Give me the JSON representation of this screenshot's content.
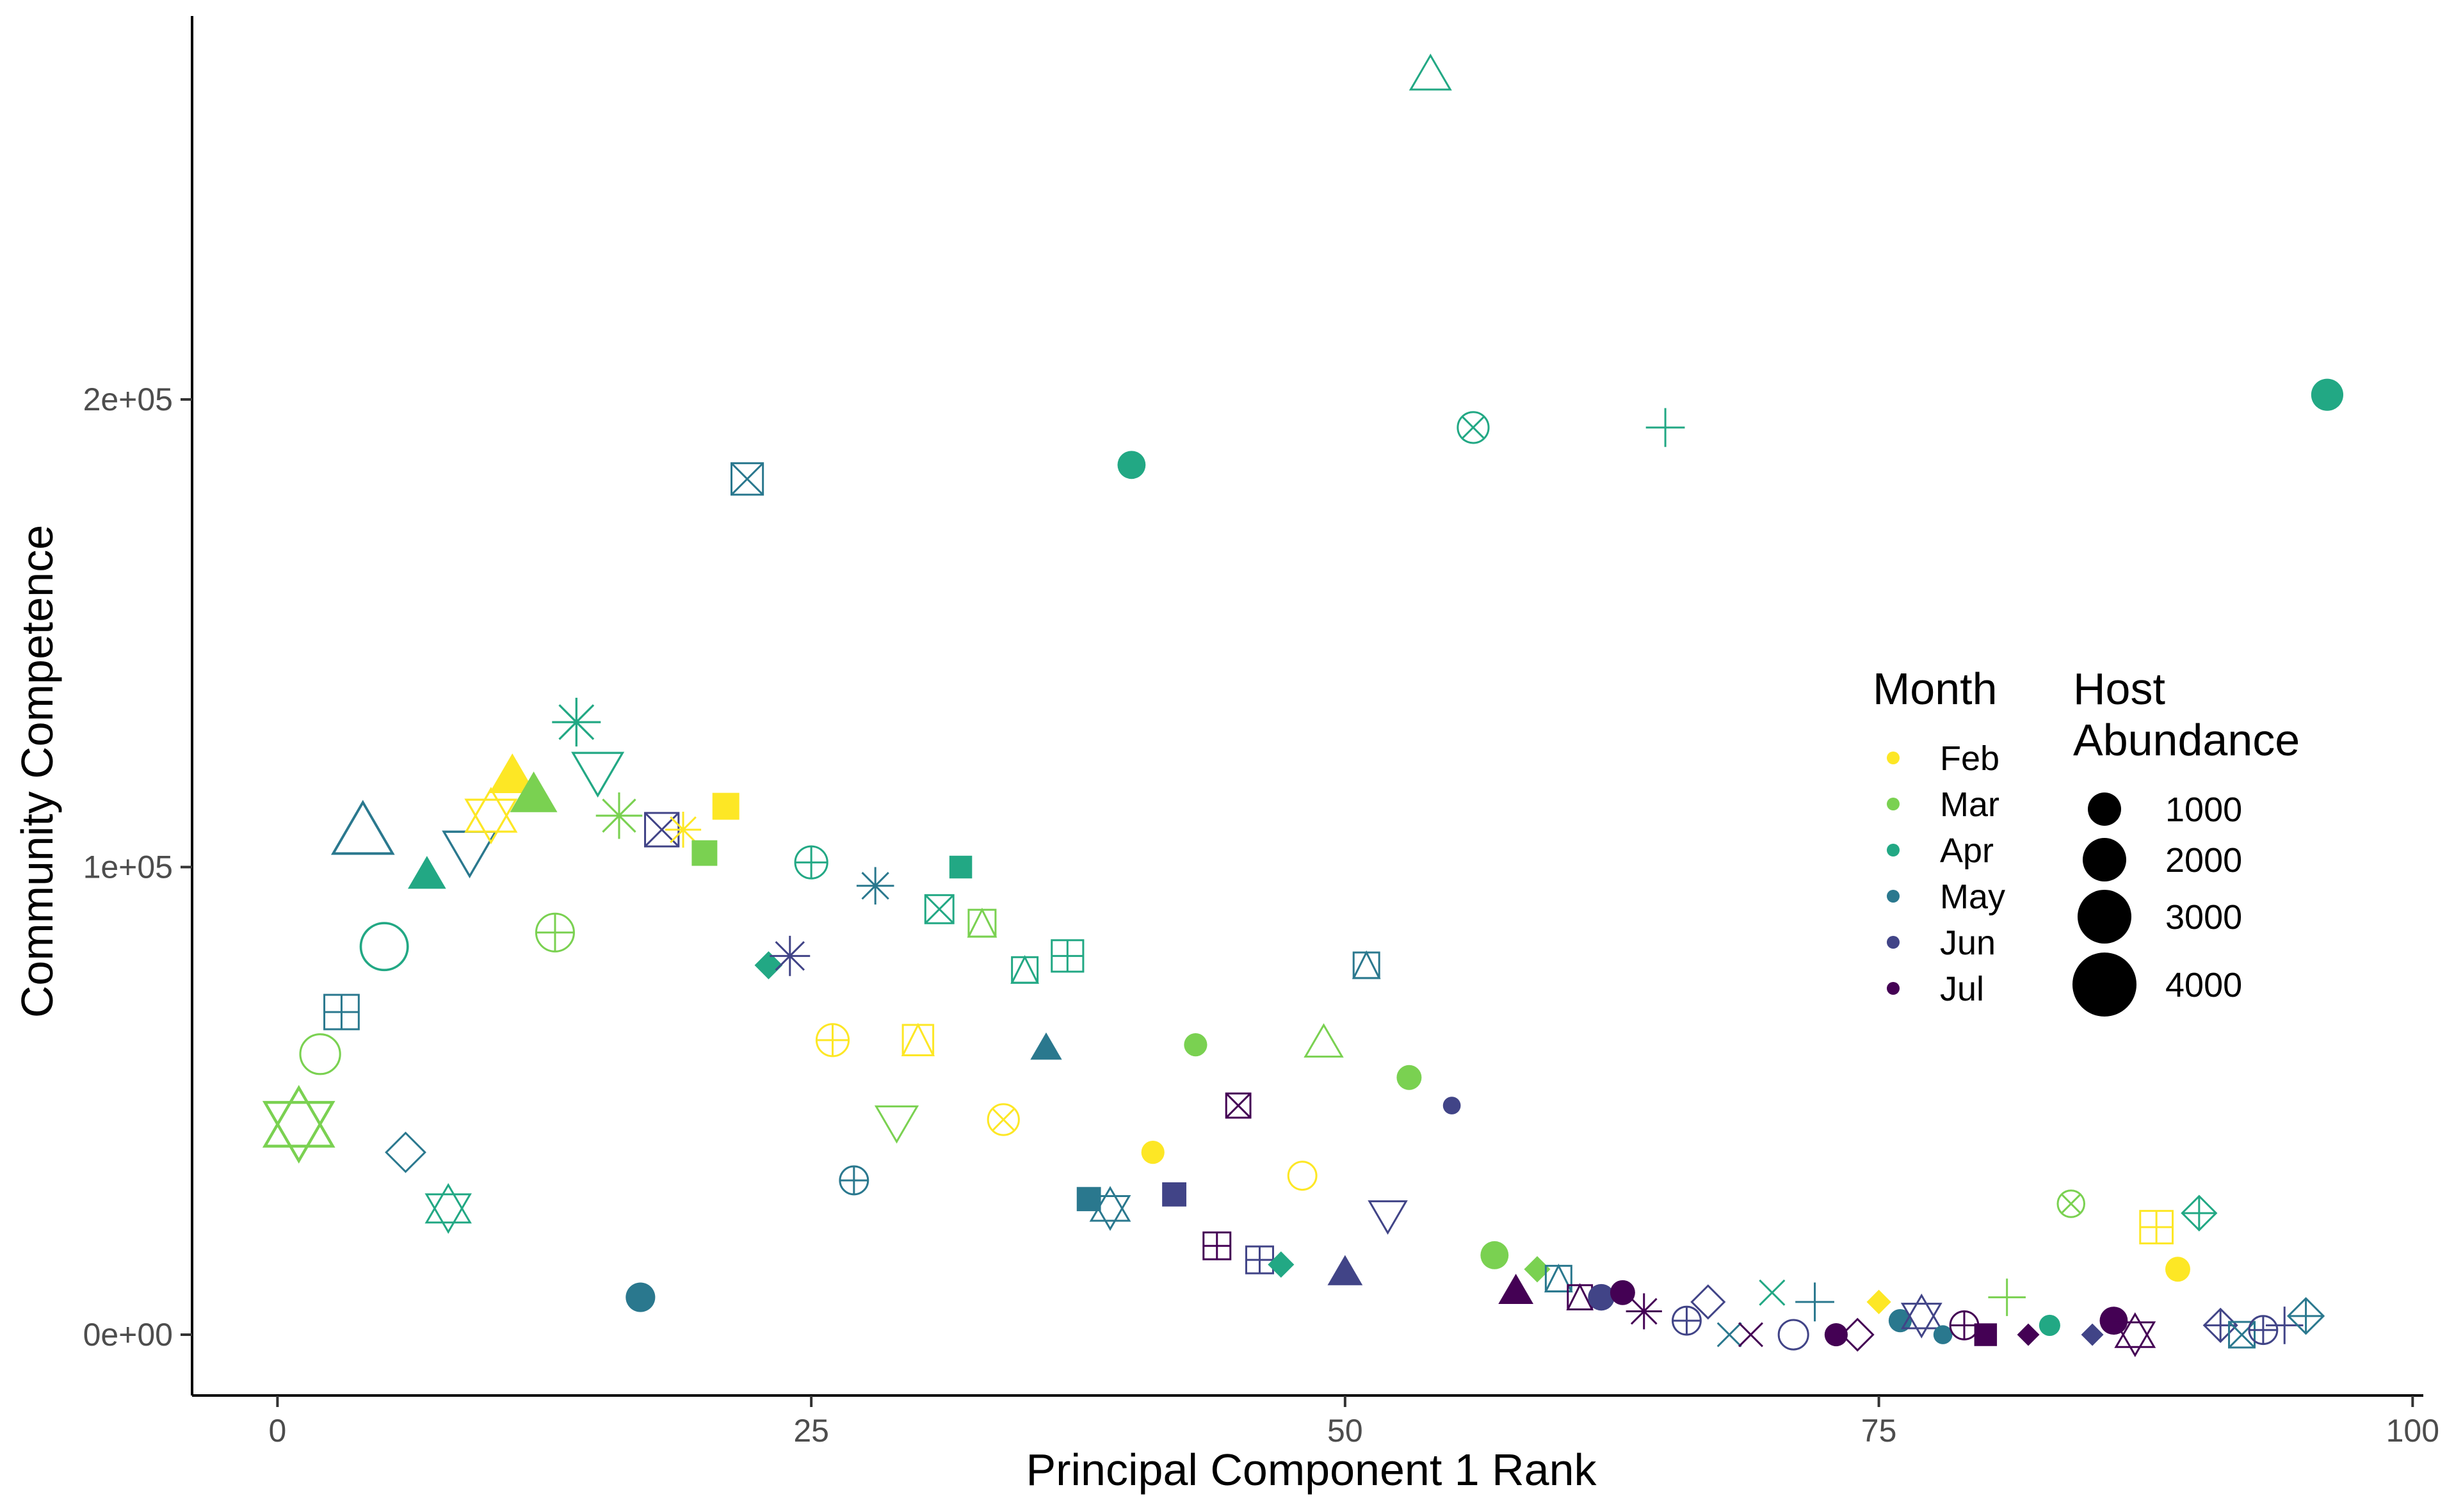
{
  "chart_data": {
    "type": "scatter",
    "title": "",
    "xlabel": "Principal Component 1 Rank",
    "ylabel": "Community Competence",
    "xlim": [
      -4,
      100.5
    ],
    "ylim": [
      -13000,
      282000
    ],
    "x_ticks": [
      {
        "value": 0,
        "label": "0"
      },
      {
        "value": 25,
        "label": "25"
      },
      {
        "value": 50,
        "label": "50"
      },
      {
        "value": 75,
        "label": "75"
      },
      {
        "value": 100,
        "label": "100"
      }
    ],
    "y_ticks": [
      {
        "value": 0,
        "label": "0e+00"
      },
      {
        "value": 100000,
        "label": "1e+05"
      },
      {
        "value": 200000,
        "label": "2e+05"
      }
    ],
    "grid": false,
    "legend": {
      "placement": "right-inside",
      "color_title": "Month",
      "months": [
        {
          "label": "Feb",
          "color": "#FDE725"
        },
        {
          "label": "Mar",
          "color": "#7AD151"
        },
        {
          "label": "Apr",
          "color": "#22A884"
        },
        {
          "label": "May",
          "color": "#2A788E"
        },
        {
          "label": "Jun",
          "color": "#414487"
        },
        {
          "label": "Jul",
          "color": "#440154"
        }
      ],
      "size_title_line1": "Host",
      "size_title_line2": "Abundance",
      "sizes": [
        {
          "label": "1000",
          "value": 1000
        },
        {
          "label": "2000",
          "value": 2000
        },
        {
          "label": "3000",
          "value": 3000
        },
        {
          "label": "4000",
          "value": 4000
        }
      ]
    },
    "points": [
      {
        "x": 1,
        "y": 45000,
        "month": "Mar",
        "shape": "hexagram",
        "size": 4000
      },
      {
        "x": 2,
        "y": 60000,
        "month": "Mar",
        "shape": "circle-open",
        "size": 1800
      },
      {
        "x": 3,
        "y": 69000,
        "month": "May",
        "shape": "square-plus",
        "size": 1600
      },
      {
        "x": 4,
        "y": 107000,
        "month": "May",
        "shape": "triangle-open",
        "size": 3000
      },
      {
        "x": 5,
        "y": 83000,
        "month": "Apr",
        "shape": "circle-open",
        "size": 2600
      },
      {
        "x": 6,
        "y": 39000,
        "month": "May",
        "shape": "diamond-open",
        "size": 1500
      },
      {
        "x": 7,
        "y": 98000,
        "month": "Apr",
        "shape": "triangle",
        "size": 1100
      },
      {
        "x": 8,
        "y": 27000,
        "month": "Apr",
        "shape": "hexagram",
        "size": 1500
      },
      {
        "x": 9,
        "y": 104000,
        "month": "May",
        "shape": "triangle-down-open",
        "size": 2200
      },
      {
        "x": 10,
        "y": 111000,
        "month": "Feb",
        "shape": "hexagram",
        "size": 2000
      },
      {
        "x": 11,
        "y": 119000,
        "month": "Feb",
        "shape": "triangle",
        "size": 1700
      },
      {
        "x": 12,
        "y": 115000,
        "month": "Mar",
        "shape": "triangle",
        "size": 1800
      },
      {
        "x": 13,
        "y": 86000,
        "month": "Mar",
        "shape": "circle-plus",
        "size": 1600
      },
      {
        "x": 14,
        "y": 131000,
        "month": "Apr",
        "shape": "asterisk",
        "size": 2000
      },
      {
        "x": 15,
        "y": 121000,
        "month": "Apr",
        "shape": "triangle-down-open",
        "size": 2000
      },
      {
        "x": 16,
        "y": 111000,
        "month": "Mar",
        "shape": "asterisk",
        "size": 1800
      },
      {
        "x": 17,
        "y": 8000,
        "month": "May",
        "shape": "circle",
        "size": 900
      },
      {
        "x": 18,
        "y": 108000,
        "month": "Jun",
        "shape": "square-cross",
        "size": 1500
      },
      {
        "x": 19,
        "y": 108000,
        "month": "Feb",
        "shape": "asterisk",
        "size": 1000
      },
      {
        "x": 20,
        "y": 103000,
        "month": "Mar",
        "shape": "square",
        "size": 800
      },
      {
        "x": 21,
        "y": 113000,
        "month": "Feb",
        "shape": "square",
        "size": 900
      },
      {
        "x": 22,
        "y": 183000,
        "month": "May",
        "shape": "square-cross",
        "size": 1300
      },
      {
        "x": 23,
        "y": 79000,
        "month": "Apr",
        "shape": "diamond",
        "size": 700
      },
      {
        "x": 24,
        "y": 81000,
        "month": "Jun",
        "shape": "asterisk",
        "size": 1300
      },
      {
        "x": 25,
        "y": 101000,
        "month": "Apr",
        "shape": "circle-plus",
        "size": 1100
      },
      {
        "x": 26,
        "y": 63000,
        "month": "Feb",
        "shape": "circle-plus",
        "size": 1100
      },
      {
        "x": 27,
        "y": 33000,
        "month": "May",
        "shape": "circle-plus",
        "size": 800
      },
      {
        "x": 28,
        "y": 96000,
        "month": "May",
        "shape": "asterisk",
        "size": 1100
      },
      {
        "x": 29,
        "y": 46000,
        "month": "Mar",
        "shape": "triangle-down-open",
        "size": 1300
      },
      {
        "x": 30,
        "y": 63000,
        "month": "Feb",
        "shape": "square-triangle",
        "size": 1200
      },
      {
        "x": 31,
        "y": 91000,
        "month": "Apr",
        "shape": "square-cross",
        "size": 1000
      },
      {
        "x": 32,
        "y": 100000,
        "month": "Apr",
        "shape": "square",
        "size": 600
      },
      {
        "x": 33,
        "y": 88000,
        "month": "Mar",
        "shape": "square-triangle",
        "size": 900
      },
      {
        "x": 34,
        "y": 46000,
        "month": "Feb",
        "shape": "circle-cross",
        "size": 1000
      },
      {
        "x": 35,
        "y": 78000,
        "month": "Apr",
        "shape": "square-triangle",
        "size": 800
      },
      {
        "x": 36,
        "y": 61000,
        "month": "May",
        "shape": "triangle",
        "size": 700
      },
      {
        "x": 37,
        "y": 81000,
        "month": "Apr",
        "shape": "square-plus",
        "size": 1300
      },
      {
        "x": 38,
        "y": 29000,
        "month": "May",
        "shape": "square",
        "size": 700
      },
      {
        "x": 39,
        "y": 27000,
        "month": "May",
        "shape": "hexagram",
        "size": 1100
      },
      {
        "x": 40,
        "y": 186000,
        "month": "Apr",
        "shape": "circle",
        "size": 800
      },
      {
        "x": 41,
        "y": 39000,
        "month": "Feb",
        "shape": "circle",
        "size": 500
      },
      {
        "x": 42,
        "y": 30000,
        "month": "Jun",
        "shape": "square",
        "size": 700
      },
      {
        "x": 43,
        "y": 62000,
        "month": "Mar",
        "shape": "circle",
        "size": 500
      },
      {
        "x": 44,
        "y": 19000,
        "month": "Jul",
        "shape": "square-plus",
        "size": 900
      },
      {
        "x": 45,
        "y": 49000,
        "month": "Jul",
        "shape": "square-cross",
        "size": 700
      },
      {
        "x": 46,
        "y": 16000,
        "month": "Jun",
        "shape": "square-plus",
        "size": 900
      },
      {
        "x": 47,
        "y": 15000,
        "month": "Apr",
        "shape": "diamond",
        "size": 600
      },
      {
        "x": 48,
        "y": 34000,
        "month": "Feb",
        "shape": "circle-open",
        "size": 800
      },
      {
        "x": 49,
        "y": 62000,
        "month": "Mar",
        "shape": "triangle-open",
        "size": 1000
      },
      {
        "x": 50,
        "y": 13000,
        "month": "Jun",
        "shape": "triangle",
        "size": 900
      },
      {
        "x": 51,
        "y": 79000,
        "month": "May",
        "shape": "square-triangle",
        "size": 800
      },
      {
        "x": 52,
        "y": 26000,
        "month": "Jun",
        "shape": "triangle-down-open",
        "size": 1000
      },
      {
        "x": 53,
        "y": 55000,
        "month": "Mar",
        "shape": "circle",
        "size": 600
      },
      {
        "x": 54,
        "y": 269000,
        "month": "Apr",
        "shape": "triangle-open",
        "size": 1200
      },
      {
        "x": 55,
        "y": 49000,
        "month": "Jun",
        "shape": "circle",
        "size": 250
      },
      {
        "x": 56,
        "y": 194000,
        "month": "Apr",
        "shape": "circle-cross",
        "size": 1000
      },
      {
        "x": 57,
        "y": 17000,
        "month": "Mar",
        "shape": "circle",
        "size": 800
      },
      {
        "x": 58,
        "y": 9000,
        "month": "Jul",
        "shape": "triangle",
        "size": 900
      },
      {
        "x": 59,
        "y": 14000,
        "month": "Mar",
        "shape": "diamond",
        "size": 600
      },
      {
        "x": 60,
        "y": 12000,
        "month": "May",
        "shape": "square-triangle",
        "size": 800
      },
      {
        "x": 61,
        "y": 8000,
        "month": "Jul",
        "shape": "square-triangle",
        "size": 700
      },
      {
        "x": 62,
        "y": 8000,
        "month": "Jun",
        "shape": "circle",
        "size": 700
      },
      {
        "x": 63,
        "y": 9000,
        "month": "Jul",
        "shape": "circle",
        "size": 600
      },
      {
        "x": 64,
        "y": 5000,
        "month": "Jul",
        "shape": "asterisk",
        "size": 1000
      },
      {
        "x": 66,
        "y": 3000,
        "month": "Jun",
        "shape": "circle-plus",
        "size": 800
      },
      {
        "x": 67,
        "y": 7000,
        "month": "Jun",
        "shape": "diamond-open",
        "size": 1000
      },
      {
        "x": 65,
        "y": 194000,
        "month": "Apr",
        "shape": "plus",
        "size": 1200
      },
      {
        "x": 68,
        "y": 0,
        "month": "May",
        "shape": "cross",
        "size": 700
      },
      {
        "x": 69,
        "y": 0,
        "month": "Jul",
        "shape": "cross",
        "size": 700
      },
      {
        "x": 70,
        "y": 9000,
        "month": "Apr",
        "shape": "cross",
        "size": 800
      },
      {
        "x": 71,
        "y": 0,
        "month": "Jun",
        "shape": "circle-open",
        "size": 900
      },
      {
        "x": 72,
        "y": 7000,
        "month": "May",
        "shape": "plus",
        "size": 1200
      },
      {
        "x": 73,
        "y": 0,
        "month": "Jul",
        "shape": "circle",
        "size": 500
      },
      {
        "x": 74,
        "y": 0,
        "month": "Jul",
        "shape": "diamond-open",
        "size": 900
      },
      {
        "x": 75,
        "y": 7000,
        "month": "Feb",
        "shape": "diamond",
        "size": 500
      },
      {
        "x": 76,
        "y": 3000,
        "month": "May",
        "shape": "circle",
        "size": 500
      },
      {
        "x": 77,
        "y": 4000,
        "month": "Jun",
        "shape": "hexagram",
        "size": 1100
      },
      {
        "x": 78,
        "y": 0,
        "month": "May",
        "shape": "circle",
        "size": 300
      },
      {
        "x": 79,
        "y": 2000,
        "month": "Jul",
        "shape": "circle-plus",
        "size": 800
      },
      {
        "x": 80,
        "y": 0,
        "month": "Jul",
        "shape": "square",
        "size": 600
      },
      {
        "x": 81,
        "y": 8000,
        "month": "Mar",
        "shape": "plus",
        "size": 1100
      },
      {
        "x": 82,
        "y": 0,
        "month": "Jul",
        "shape": "diamond",
        "size": 400
      },
      {
        "x": 83,
        "y": 2000,
        "month": "Apr",
        "shape": "circle",
        "size": 400
      },
      {
        "x": 84,
        "y": 28000,
        "month": "Mar",
        "shape": "circle-cross",
        "size": 700
      },
      {
        "x": 85,
        "y": 0,
        "month": "Jun",
        "shape": "diamond",
        "size": 400
      },
      {
        "x": 86,
        "y": 3000,
        "month": "Jul",
        "shape": "circle",
        "size": 800
      },
      {
        "x": 87,
        "y": 0,
        "month": "Jul",
        "shape": "hexagram",
        "size": 1100
      },
      {
        "x": 88,
        "y": 23000,
        "month": "Feb",
        "shape": "square-plus",
        "size": 1400
      },
      {
        "x": 89,
        "y": 14000,
        "month": "Feb",
        "shape": "circle",
        "size": 600
      },
      {
        "x": 90,
        "y": 26000,
        "month": "Apr",
        "shape": "diamond-plus",
        "size": 1100
      },
      {
        "x": 91,
        "y": 2000,
        "month": "Jun",
        "shape": "diamond-plus",
        "size": 1000
      },
      {
        "x": 92,
        "y": 0,
        "month": "May",
        "shape": "square-cross",
        "size": 800
      },
      {
        "x": 93,
        "y": 1000,
        "month": "Jun",
        "shape": "circle-plus",
        "size": 800
      },
      {
        "x": 94,
        "y": 2000,
        "month": "Jun",
        "shape": "plus",
        "size": 1100
      },
      {
        "x": 95,
        "y": 4000,
        "month": "May",
        "shape": "diamond-plus",
        "size": 1200
      },
      {
        "x": 96,
        "y": 201000,
        "month": "Apr",
        "shape": "circle",
        "size": 1100
      }
    ]
  }
}
